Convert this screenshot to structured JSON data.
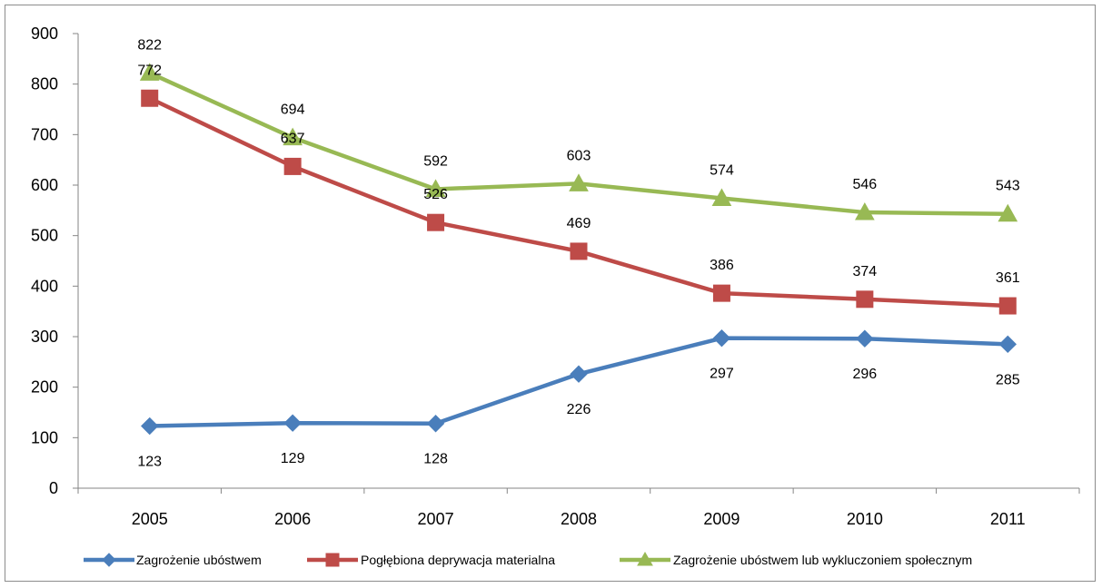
{
  "chart_data": {
    "type": "line",
    "title": "",
    "xlabel": "",
    "ylabel": "",
    "x": [
      "2005",
      "2006",
      "2007",
      "2008",
      "2009",
      "2010",
      "2011"
    ],
    "ylim": [
      0,
      900
    ],
    "yticks": [
      0,
      100,
      200,
      300,
      400,
      500,
      600,
      700,
      800,
      900
    ],
    "grid": false,
    "legend_position": "bottom",
    "series": [
      {
        "name": "Zagrożenie ubóstwem",
        "values": [
          123,
          129,
          128,
          226,
          297,
          296,
          285
        ],
        "color": "#4a7ebb",
        "marker": "diamond",
        "label_position": "below"
      },
      {
        "name": "Pogłębiona deprywacja materialna",
        "values": [
          772,
          637,
          526,
          469,
          386,
          374,
          361
        ],
        "color": "#be4b48",
        "marker": "square",
        "label_position": "above"
      },
      {
        "name": "Zagrożenie ubóstwem lub wykluczoniem społecznym",
        "values": [
          822,
          694,
          592,
          603,
          574,
          546,
          543
        ],
        "color": "#98b954",
        "marker": "triangle",
        "label_position": "above"
      }
    ]
  }
}
